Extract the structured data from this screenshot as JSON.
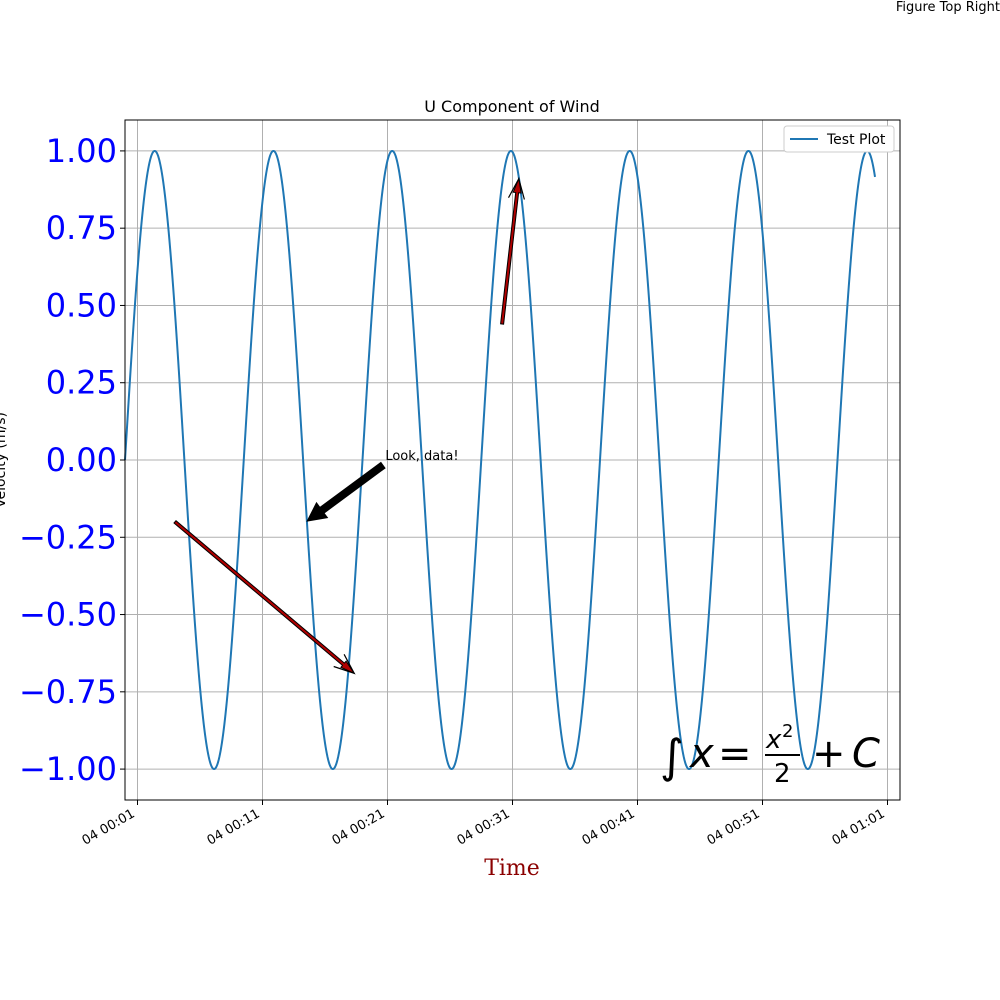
{
  "figure": {
    "top_right_text": "Figure Top Right"
  },
  "chart_data": {
    "type": "line",
    "title": "U Component of Wind",
    "xlabel": "Time",
    "ylabel": "Velocity (m/s)",
    "x_axis": {
      "kind": "time",
      "range": [
        "04 00:00",
        "04 01:02"
      ],
      "ticks": [
        {
          "value": "04 00:01",
          "label": "04 00:01"
        },
        {
          "value": "04 00:11",
          "label": "04 00:11"
        },
        {
          "value": "04 00:21",
          "label": "04 00:21"
        },
        {
          "value": "04 00:31",
          "label": "04 00:31"
        },
        {
          "value": "04 00:41",
          "label": "04 00:41"
        },
        {
          "value": "04 00:51",
          "label": "04 00:51"
        },
        {
          "value": "04 01:01",
          "label": "04 01:01"
        }
      ]
    },
    "y_axis": {
      "range": [
        -1.1,
        1.1
      ],
      "ticks": [
        1.0,
        0.75,
        0.5,
        0.25,
        0.0,
        -0.25,
        -0.5,
        -0.75,
        -1.0
      ],
      "tick_labels": [
        "1.00",
        "0.75",
        "0.50",
        "0.25",
        "0.00",
        "−0.25",
        "−0.50",
        "−0.75",
        "−1.00"
      ],
      "tick_label_color": "#0000ff"
    },
    "grid": true,
    "legend": {
      "position": "top-right",
      "entries": [
        "Test Plot"
      ]
    },
    "series": [
      {
        "name": "Test Plot",
        "color": "#1f77b4",
        "function": "sine",
        "x_start": "04 00:00",
        "x_end": "04 01:00",
        "period_minutes": 9.5,
        "amplitude": 1.0,
        "phase_at_start": 0
      }
    ],
    "annotations": [
      {
        "text": "Look, data!",
        "text_at": {
          "x": "04 00:20:40",
          "y": 0.0
        },
        "arrow_to": {
          "x": "04 00:14:30",
          "y": -0.2
        },
        "arrow_style": "thick-black"
      },
      {
        "text": "",
        "arrow_from": {
          "x": "04 00:04:00",
          "y": -0.2
        },
        "arrow_to": {
          "x": "04 00:18:20",
          "y": -0.69
        },
        "arrow_style": "dark-red-outline"
      },
      {
        "text": "",
        "arrow_from": {
          "x": "04 00:30:10",
          "y": 0.44
        },
        "arrow_to": {
          "x": "04 00:31:30",
          "y": 0.91
        },
        "arrow_style": "dark-red-outline"
      }
    ],
    "equation_text": "∫x = x²/2 + C",
    "xlabel_color": "#8b0000"
  }
}
